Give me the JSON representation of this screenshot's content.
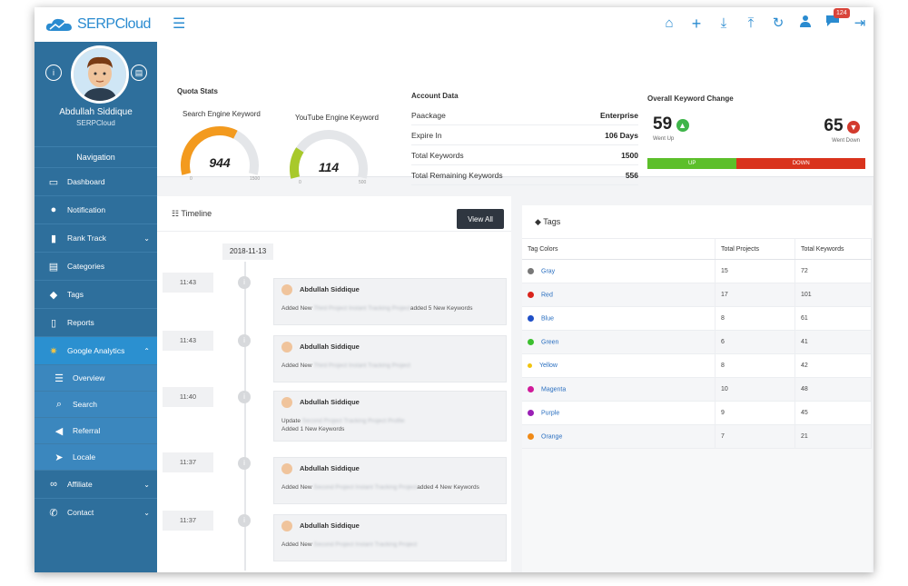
{
  "brand": {
    "name": "SERPCloud"
  },
  "topbar": {
    "icons": [
      "home-icon",
      "plus-icon",
      "download-icon",
      "upload-icon",
      "refresh-icon",
      "user-icon",
      "chat-icon",
      "logout-icon"
    ],
    "notification_count": "124"
  },
  "profile": {
    "name": "Abdullah Siddique",
    "role": "SERPCloud"
  },
  "sidebar": {
    "heading": "Navigation",
    "items": [
      {
        "label": "Dashboard",
        "icon": "monitor-icon"
      },
      {
        "label": "Notification",
        "icon": "comment-icon"
      },
      {
        "label": "Rank Track",
        "icon": "book-icon",
        "chevron": "⌄"
      },
      {
        "label": "Categories",
        "icon": "list-icon"
      },
      {
        "label": "Tags",
        "icon": "tag-icon"
      },
      {
        "label": "Reports",
        "icon": "file-icon"
      },
      {
        "label": "Google Analytics",
        "icon": "gears-icon",
        "chevron": "⌃"
      },
      {
        "label": "Overview",
        "icon": "list-icon"
      },
      {
        "label": "Search",
        "icon": "search-icon"
      },
      {
        "label": "Referral",
        "icon": "megaphone-icon"
      },
      {
        "label": "Locale",
        "icon": "location-arrow-icon"
      },
      {
        "label": "Affiliate",
        "icon": "link-icon",
        "chevron": "⌄"
      },
      {
        "label": "Contact",
        "icon": "phone-icon",
        "chevron": "⌄"
      }
    ]
  },
  "quota": {
    "title": "Quota Stats",
    "search": {
      "label": "Search Engine Keyword",
      "value": "944",
      "min": "0",
      "max": "1500",
      "fraction": 0.63
    },
    "youtube": {
      "label": "YouTube Engine Keyword",
      "value": "114",
      "min": "0",
      "max": "500",
      "fraction": 0.23
    }
  },
  "account": {
    "title": "Account Data",
    "rows": [
      {
        "label": "Paackage",
        "value": "Enterprise"
      },
      {
        "label": "Expire In",
        "value": "106 Days"
      },
      {
        "label": "Total Keywords",
        "value": "1500"
      },
      {
        "label": "Total Remaining Keywords",
        "value": "556"
      }
    ]
  },
  "keyword_change": {
    "title": "Overall Keyword Change",
    "up_value": "59",
    "up_label": "Went Up",
    "down_value": "65",
    "down_label": "Went Down",
    "up_bar": "UP",
    "down_bar": "DOWN",
    "up_fraction": 0.41
  },
  "timeline": {
    "title": "Timeline",
    "view_all": "View All",
    "date": "2018-11-13",
    "entries": [
      {
        "time": "11:43",
        "name": "Abdullah Siddique",
        "line1": "Added New",
        "line2": "",
        "blurred": "Third Project Instant Tracking Project",
        "suffix": "added 5 New Keywords"
      },
      {
        "time": "11:43",
        "name": "Abdullah Siddique",
        "line1": "Added New",
        "line2": "",
        "blurred": "Third Project Instant Tracking Project",
        "suffix": ""
      },
      {
        "time": "11:40",
        "name": "Abdullah Siddique",
        "line1": "Update",
        "line2": "Added 1 New Keywords",
        "blurred": "Second Project Tracking Project Profile",
        "suffix": ""
      },
      {
        "time": "11:37",
        "name": "Abdullah Siddique",
        "line1": "Added New",
        "line2": "",
        "blurred": "Second Project Instant Tracking Project",
        "suffix": "added 4 New Keywords"
      },
      {
        "time": "11:37",
        "name": "Abdullah Siddique",
        "line1": "Added New",
        "line2": "",
        "blurred": "Second Project Instant Tracking Project",
        "suffix": ""
      }
    ]
  },
  "tags": {
    "title": "Tags",
    "columns": [
      "Tag Colors",
      "Total Projects",
      "Total Keywords"
    ],
    "rows": [
      {
        "name": "Gray",
        "color": "#777777",
        "projects": "15",
        "keywords": "72"
      },
      {
        "name": "Red",
        "color": "#d9241c",
        "projects": "17",
        "keywords": "101"
      },
      {
        "name": "Blue",
        "color": "#1f4fc7",
        "projects": "8",
        "keywords": "61"
      },
      {
        "name": "Green",
        "color": "#3cbf2f",
        "projects": "6",
        "keywords": "41"
      },
      {
        "name": "Yellow",
        "color": "#f1c40f",
        "projects": "8",
        "keywords": "42"
      },
      {
        "name": "Magenta",
        "color": "#d01a9a",
        "projects": "10",
        "keywords": "48"
      },
      {
        "name": "Purple",
        "color": "#9a1fb5",
        "projects": "9",
        "keywords": "45"
      },
      {
        "name": "Orange",
        "color": "#f08a17",
        "projects": "7",
        "keywords": "21"
      }
    ]
  }
}
